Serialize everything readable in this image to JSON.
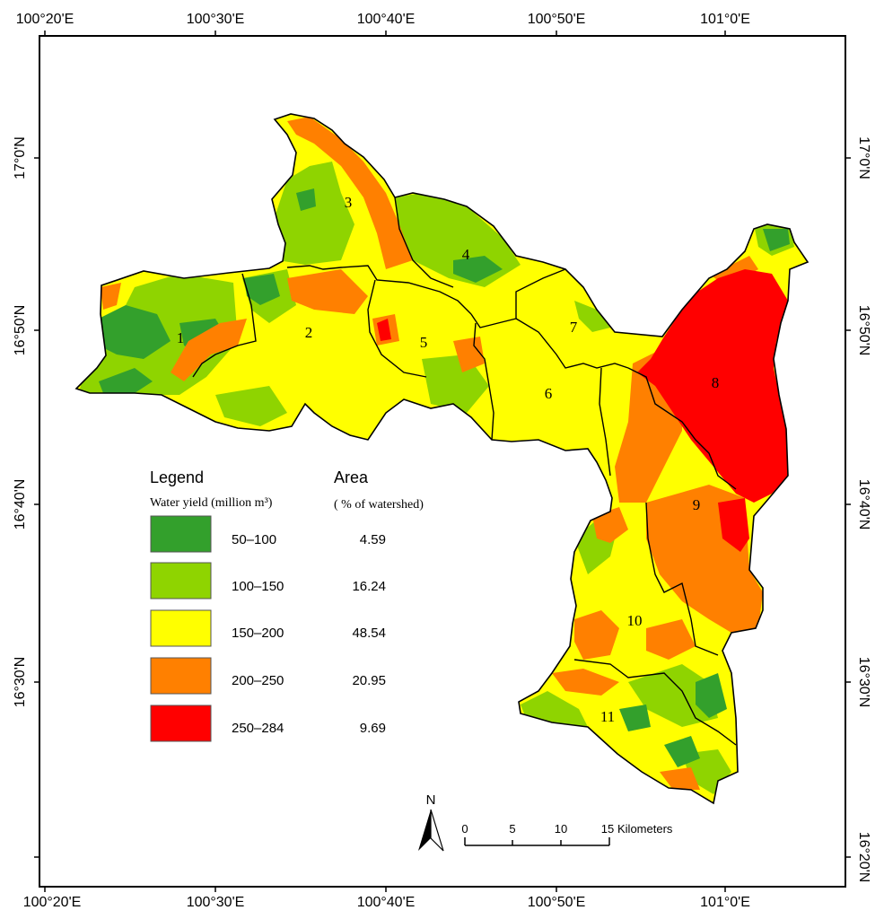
{
  "colors": {
    "c50_100": "#33a02c",
    "c100_150": "#8fd400",
    "c150_200": "#ffff00",
    "c200_250": "#ff8000",
    "c250_284": "#ff0000",
    "boundary": "#000000"
  },
  "axes": {
    "lon_ticks": [
      "100°20'E",
      "100°30'E",
      "100°40'E",
      "100°50'E",
      "101°0'E"
    ],
    "lat_ticks": [
      "17°0'N",
      "16°50'N",
      "16°40'N",
      "16°30'N",
      "16°20'N"
    ]
  },
  "subwatersheds": [
    "1",
    "2",
    "3",
    "4",
    "5",
    "6",
    "7",
    "8",
    "9",
    "10",
    "11"
  ],
  "legend": {
    "title": "Legend",
    "subtitle": "Water yield (million m³)",
    "area_title": "Area",
    "area_subtitle": "( % of watershed)",
    "items": [
      {
        "range": "50–100",
        "area": "4.59",
        "color": "#33a02c"
      },
      {
        "range": "100–150",
        "area": "16.24",
        "color": "#8fd400"
      },
      {
        "range": "150–200",
        "area": "48.54",
        "color": "#ffff00"
      },
      {
        "range": "200–250",
        "area": "20.95",
        "color": "#ff8000"
      },
      {
        "range": "250–284",
        "area": "9.69",
        "color": "#ff0000"
      }
    ]
  },
  "north_arrow": "N",
  "scale_bar": {
    "ticks": [
      "0",
      "5",
      "10",
      "15"
    ],
    "unit": "Kilometers"
  }
}
